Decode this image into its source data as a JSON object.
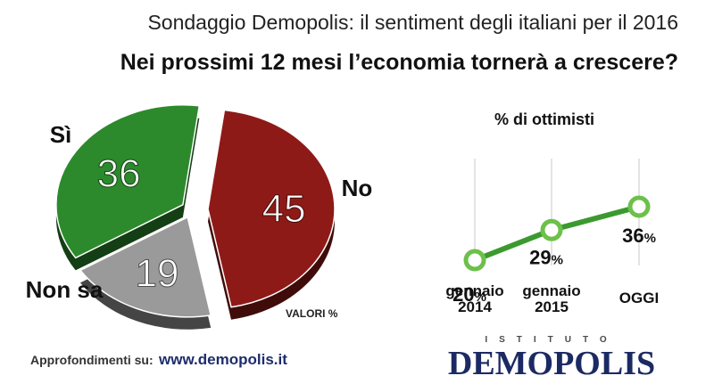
{
  "header": {
    "subtitle": "Sondaggio Demopolis: il sentiment degli italiani per il 2016",
    "title": "Nei prossimi 12 mesi l’economia tornerà a crescere?"
  },
  "chart_data": [
    {
      "type": "pie",
      "slices": [
        {
          "label": "No",
          "value": 45,
          "color": "#8e1a17"
        },
        {
          "label": "Non sa",
          "value": 19,
          "color": "#9a9a9a"
        },
        {
          "label": "Sì",
          "value": 36,
          "color": "#2c8a2c"
        }
      ],
      "note": "VALORI %"
    },
    {
      "type": "line",
      "title": "% di ottimisti",
      "categories": [
        "gennaio 2014",
        "gennaio 2015",
        "OGGI"
      ],
      "series": [
        {
          "values": [
            20,
            29,
            36
          ],
          "color": "#3b9a2e"
        }
      ],
      "unit": "%"
    }
  ],
  "footer": {
    "label": "Approfondimenti su:",
    "url": "www.demopolis.it"
  },
  "brand": {
    "top": "ISTITUTO",
    "name": "DEMOPOLIS"
  }
}
